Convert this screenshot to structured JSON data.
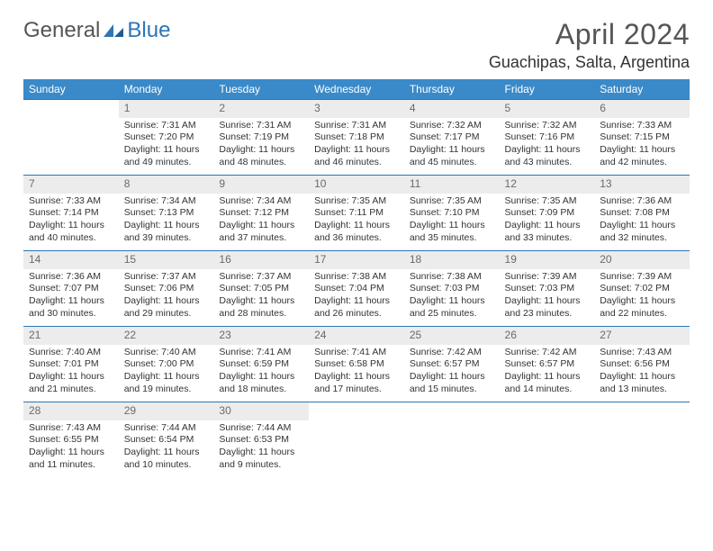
{
  "brand": {
    "part1": "General",
    "part2": "Blue"
  },
  "title": "April 2024",
  "location": "Guachipas, Salta, Argentina",
  "colors": {
    "header_bg": "#3a8ac9",
    "border": "#2e75b6",
    "daynum_bg": "#ececec",
    "daynum_fg": "#6a6a6a",
    "brand_blue": "#2e75b6",
    "text": "#333333",
    "background": "#ffffff"
  },
  "weekdays": [
    "Sunday",
    "Monday",
    "Tuesday",
    "Wednesday",
    "Thursday",
    "Friday",
    "Saturday"
  ],
  "weeks": [
    [
      null,
      {
        "n": "1",
        "sr": "Sunrise: 7:31 AM",
        "ss": "Sunset: 7:20 PM",
        "dl": "Daylight: 11 hours and 49 minutes."
      },
      {
        "n": "2",
        "sr": "Sunrise: 7:31 AM",
        "ss": "Sunset: 7:19 PM",
        "dl": "Daylight: 11 hours and 48 minutes."
      },
      {
        "n": "3",
        "sr": "Sunrise: 7:31 AM",
        "ss": "Sunset: 7:18 PM",
        "dl": "Daylight: 11 hours and 46 minutes."
      },
      {
        "n": "4",
        "sr": "Sunrise: 7:32 AM",
        "ss": "Sunset: 7:17 PM",
        "dl": "Daylight: 11 hours and 45 minutes."
      },
      {
        "n": "5",
        "sr": "Sunrise: 7:32 AM",
        "ss": "Sunset: 7:16 PM",
        "dl": "Daylight: 11 hours and 43 minutes."
      },
      {
        "n": "6",
        "sr": "Sunrise: 7:33 AM",
        "ss": "Sunset: 7:15 PM",
        "dl": "Daylight: 11 hours and 42 minutes."
      }
    ],
    [
      {
        "n": "7",
        "sr": "Sunrise: 7:33 AM",
        "ss": "Sunset: 7:14 PM",
        "dl": "Daylight: 11 hours and 40 minutes."
      },
      {
        "n": "8",
        "sr": "Sunrise: 7:34 AM",
        "ss": "Sunset: 7:13 PM",
        "dl": "Daylight: 11 hours and 39 minutes."
      },
      {
        "n": "9",
        "sr": "Sunrise: 7:34 AM",
        "ss": "Sunset: 7:12 PM",
        "dl": "Daylight: 11 hours and 37 minutes."
      },
      {
        "n": "10",
        "sr": "Sunrise: 7:35 AM",
        "ss": "Sunset: 7:11 PM",
        "dl": "Daylight: 11 hours and 36 minutes."
      },
      {
        "n": "11",
        "sr": "Sunrise: 7:35 AM",
        "ss": "Sunset: 7:10 PM",
        "dl": "Daylight: 11 hours and 35 minutes."
      },
      {
        "n": "12",
        "sr": "Sunrise: 7:35 AM",
        "ss": "Sunset: 7:09 PM",
        "dl": "Daylight: 11 hours and 33 minutes."
      },
      {
        "n": "13",
        "sr": "Sunrise: 7:36 AM",
        "ss": "Sunset: 7:08 PM",
        "dl": "Daylight: 11 hours and 32 minutes."
      }
    ],
    [
      {
        "n": "14",
        "sr": "Sunrise: 7:36 AM",
        "ss": "Sunset: 7:07 PM",
        "dl": "Daylight: 11 hours and 30 minutes."
      },
      {
        "n": "15",
        "sr": "Sunrise: 7:37 AM",
        "ss": "Sunset: 7:06 PM",
        "dl": "Daylight: 11 hours and 29 minutes."
      },
      {
        "n": "16",
        "sr": "Sunrise: 7:37 AM",
        "ss": "Sunset: 7:05 PM",
        "dl": "Daylight: 11 hours and 28 minutes."
      },
      {
        "n": "17",
        "sr": "Sunrise: 7:38 AM",
        "ss": "Sunset: 7:04 PM",
        "dl": "Daylight: 11 hours and 26 minutes."
      },
      {
        "n": "18",
        "sr": "Sunrise: 7:38 AM",
        "ss": "Sunset: 7:03 PM",
        "dl": "Daylight: 11 hours and 25 minutes."
      },
      {
        "n": "19",
        "sr": "Sunrise: 7:39 AM",
        "ss": "Sunset: 7:03 PM",
        "dl": "Daylight: 11 hours and 23 minutes."
      },
      {
        "n": "20",
        "sr": "Sunrise: 7:39 AM",
        "ss": "Sunset: 7:02 PM",
        "dl": "Daylight: 11 hours and 22 minutes."
      }
    ],
    [
      {
        "n": "21",
        "sr": "Sunrise: 7:40 AM",
        "ss": "Sunset: 7:01 PM",
        "dl": "Daylight: 11 hours and 21 minutes."
      },
      {
        "n": "22",
        "sr": "Sunrise: 7:40 AM",
        "ss": "Sunset: 7:00 PM",
        "dl": "Daylight: 11 hours and 19 minutes."
      },
      {
        "n": "23",
        "sr": "Sunrise: 7:41 AM",
        "ss": "Sunset: 6:59 PM",
        "dl": "Daylight: 11 hours and 18 minutes."
      },
      {
        "n": "24",
        "sr": "Sunrise: 7:41 AM",
        "ss": "Sunset: 6:58 PM",
        "dl": "Daylight: 11 hours and 17 minutes."
      },
      {
        "n": "25",
        "sr": "Sunrise: 7:42 AM",
        "ss": "Sunset: 6:57 PM",
        "dl": "Daylight: 11 hours and 15 minutes."
      },
      {
        "n": "26",
        "sr": "Sunrise: 7:42 AM",
        "ss": "Sunset: 6:57 PM",
        "dl": "Daylight: 11 hours and 14 minutes."
      },
      {
        "n": "27",
        "sr": "Sunrise: 7:43 AM",
        "ss": "Sunset: 6:56 PM",
        "dl": "Daylight: 11 hours and 13 minutes."
      }
    ],
    [
      {
        "n": "28",
        "sr": "Sunrise: 7:43 AM",
        "ss": "Sunset: 6:55 PM",
        "dl": "Daylight: 11 hours and 11 minutes."
      },
      {
        "n": "29",
        "sr": "Sunrise: 7:44 AM",
        "ss": "Sunset: 6:54 PM",
        "dl": "Daylight: 11 hours and 10 minutes."
      },
      {
        "n": "30",
        "sr": "Sunrise: 7:44 AM",
        "ss": "Sunset: 6:53 PM",
        "dl": "Daylight: 11 hours and 9 minutes."
      },
      null,
      null,
      null,
      null
    ]
  ]
}
